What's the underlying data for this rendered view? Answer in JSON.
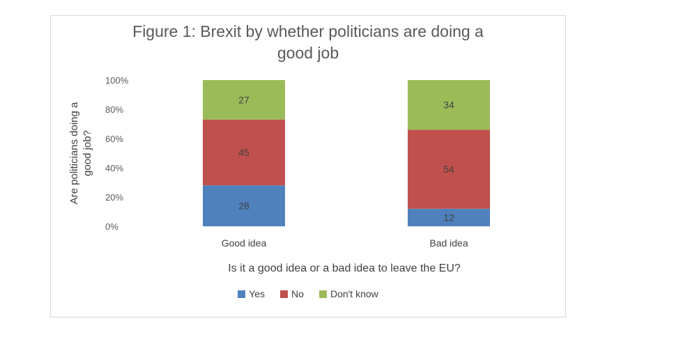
{
  "chart_data": {
    "type": "bar",
    "stacked": true,
    "percent_axis": true,
    "title": "Figure 1: Brexit by whether politicians are doing a good job",
    "title_lines": [
      "Figure 1: Brexit by whether politicians are doing a",
      "good job"
    ],
    "ylabel_lines": [
      "Are politicians doing a",
      "good job?"
    ],
    "xlabel": "Is it a good idea or a bad idea to leave the EU?",
    "categories": [
      "Good idea",
      "Bad idea"
    ],
    "ylim": [
      0,
      100
    ],
    "yticks": [
      "0%",
      "20%",
      "40%",
      "60%",
      "80%",
      "100%"
    ],
    "series": [
      {
        "name": "Yes",
        "values": [
          28,
          12
        ],
        "color": "#4f81bd"
      },
      {
        "name": "No",
        "values": [
          45,
          54
        ],
        "color": "#c0504d"
      },
      {
        "name": "Don't know",
        "values": [
          27,
          34
        ],
        "color": "#9bbb59"
      }
    ],
    "grid": false,
    "legend_position": "bottom"
  }
}
